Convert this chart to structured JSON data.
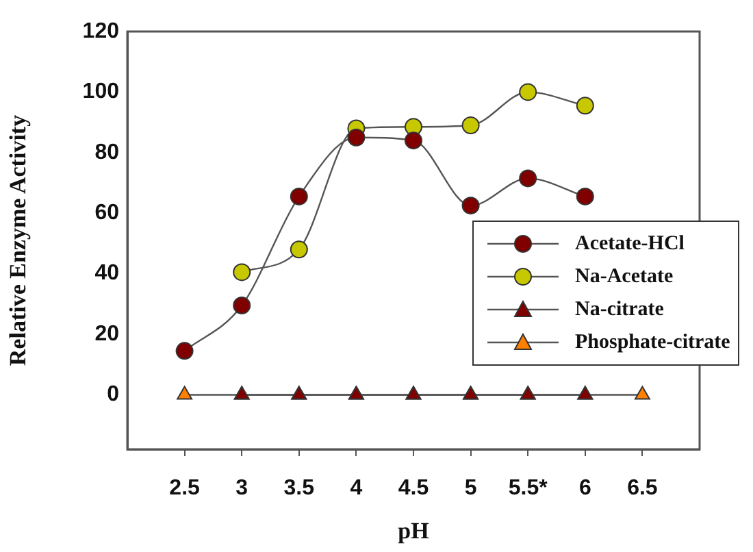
{
  "chart_data": {
    "type": "line",
    "xlabel": "pH",
    "ylabel": "Relative Enzyme Activity",
    "categories": [
      "2.5",
      "3",
      "3.5",
      "4",
      "4.5",
      "5",
      "5.5*",
      "6",
      "6.5"
    ],
    "ylim": [
      -18,
      120
    ],
    "yticks": [
      0,
      20,
      40,
      60,
      80,
      100,
      120
    ],
    "grid": false,
    "legend": "right",
    "line_style": "solid",
    "series": [
      {
        "name": "Acetate-HCl",
        "color": "#800000",
        "marker": "circle",
        "values": [
          14.5,
          29.5,
          65.5,
          85,
          84,
          62.5,
          71.5,
          65.5,
          null
        ]
      },
      {
        "name": "Na-Acetate",
        "color": "#c8c800",
        "marker": "circle",
        "values": [
          null,
          40.5,
          48,
          88,
          88.5,
          89,
          100,
          95.5,
          null
        ]
      },
      {
        "name": "Na-citrate",
        "color": "#800000",
        "marker": "triangle",
        "values": [
          null,
          0,
          0,
          0,
          0,
          0,
          0,
          0,
          null
        ]
      },
      {
        "name": "Phosphate-citrate",
        "color": "#ff8000",
        "marker": "triangle",
        "values": [
          0,
          0,
          0,
          0,
          0,
          0,
          0,
          0,
          0
        ]
      }
    ]
  }
}
